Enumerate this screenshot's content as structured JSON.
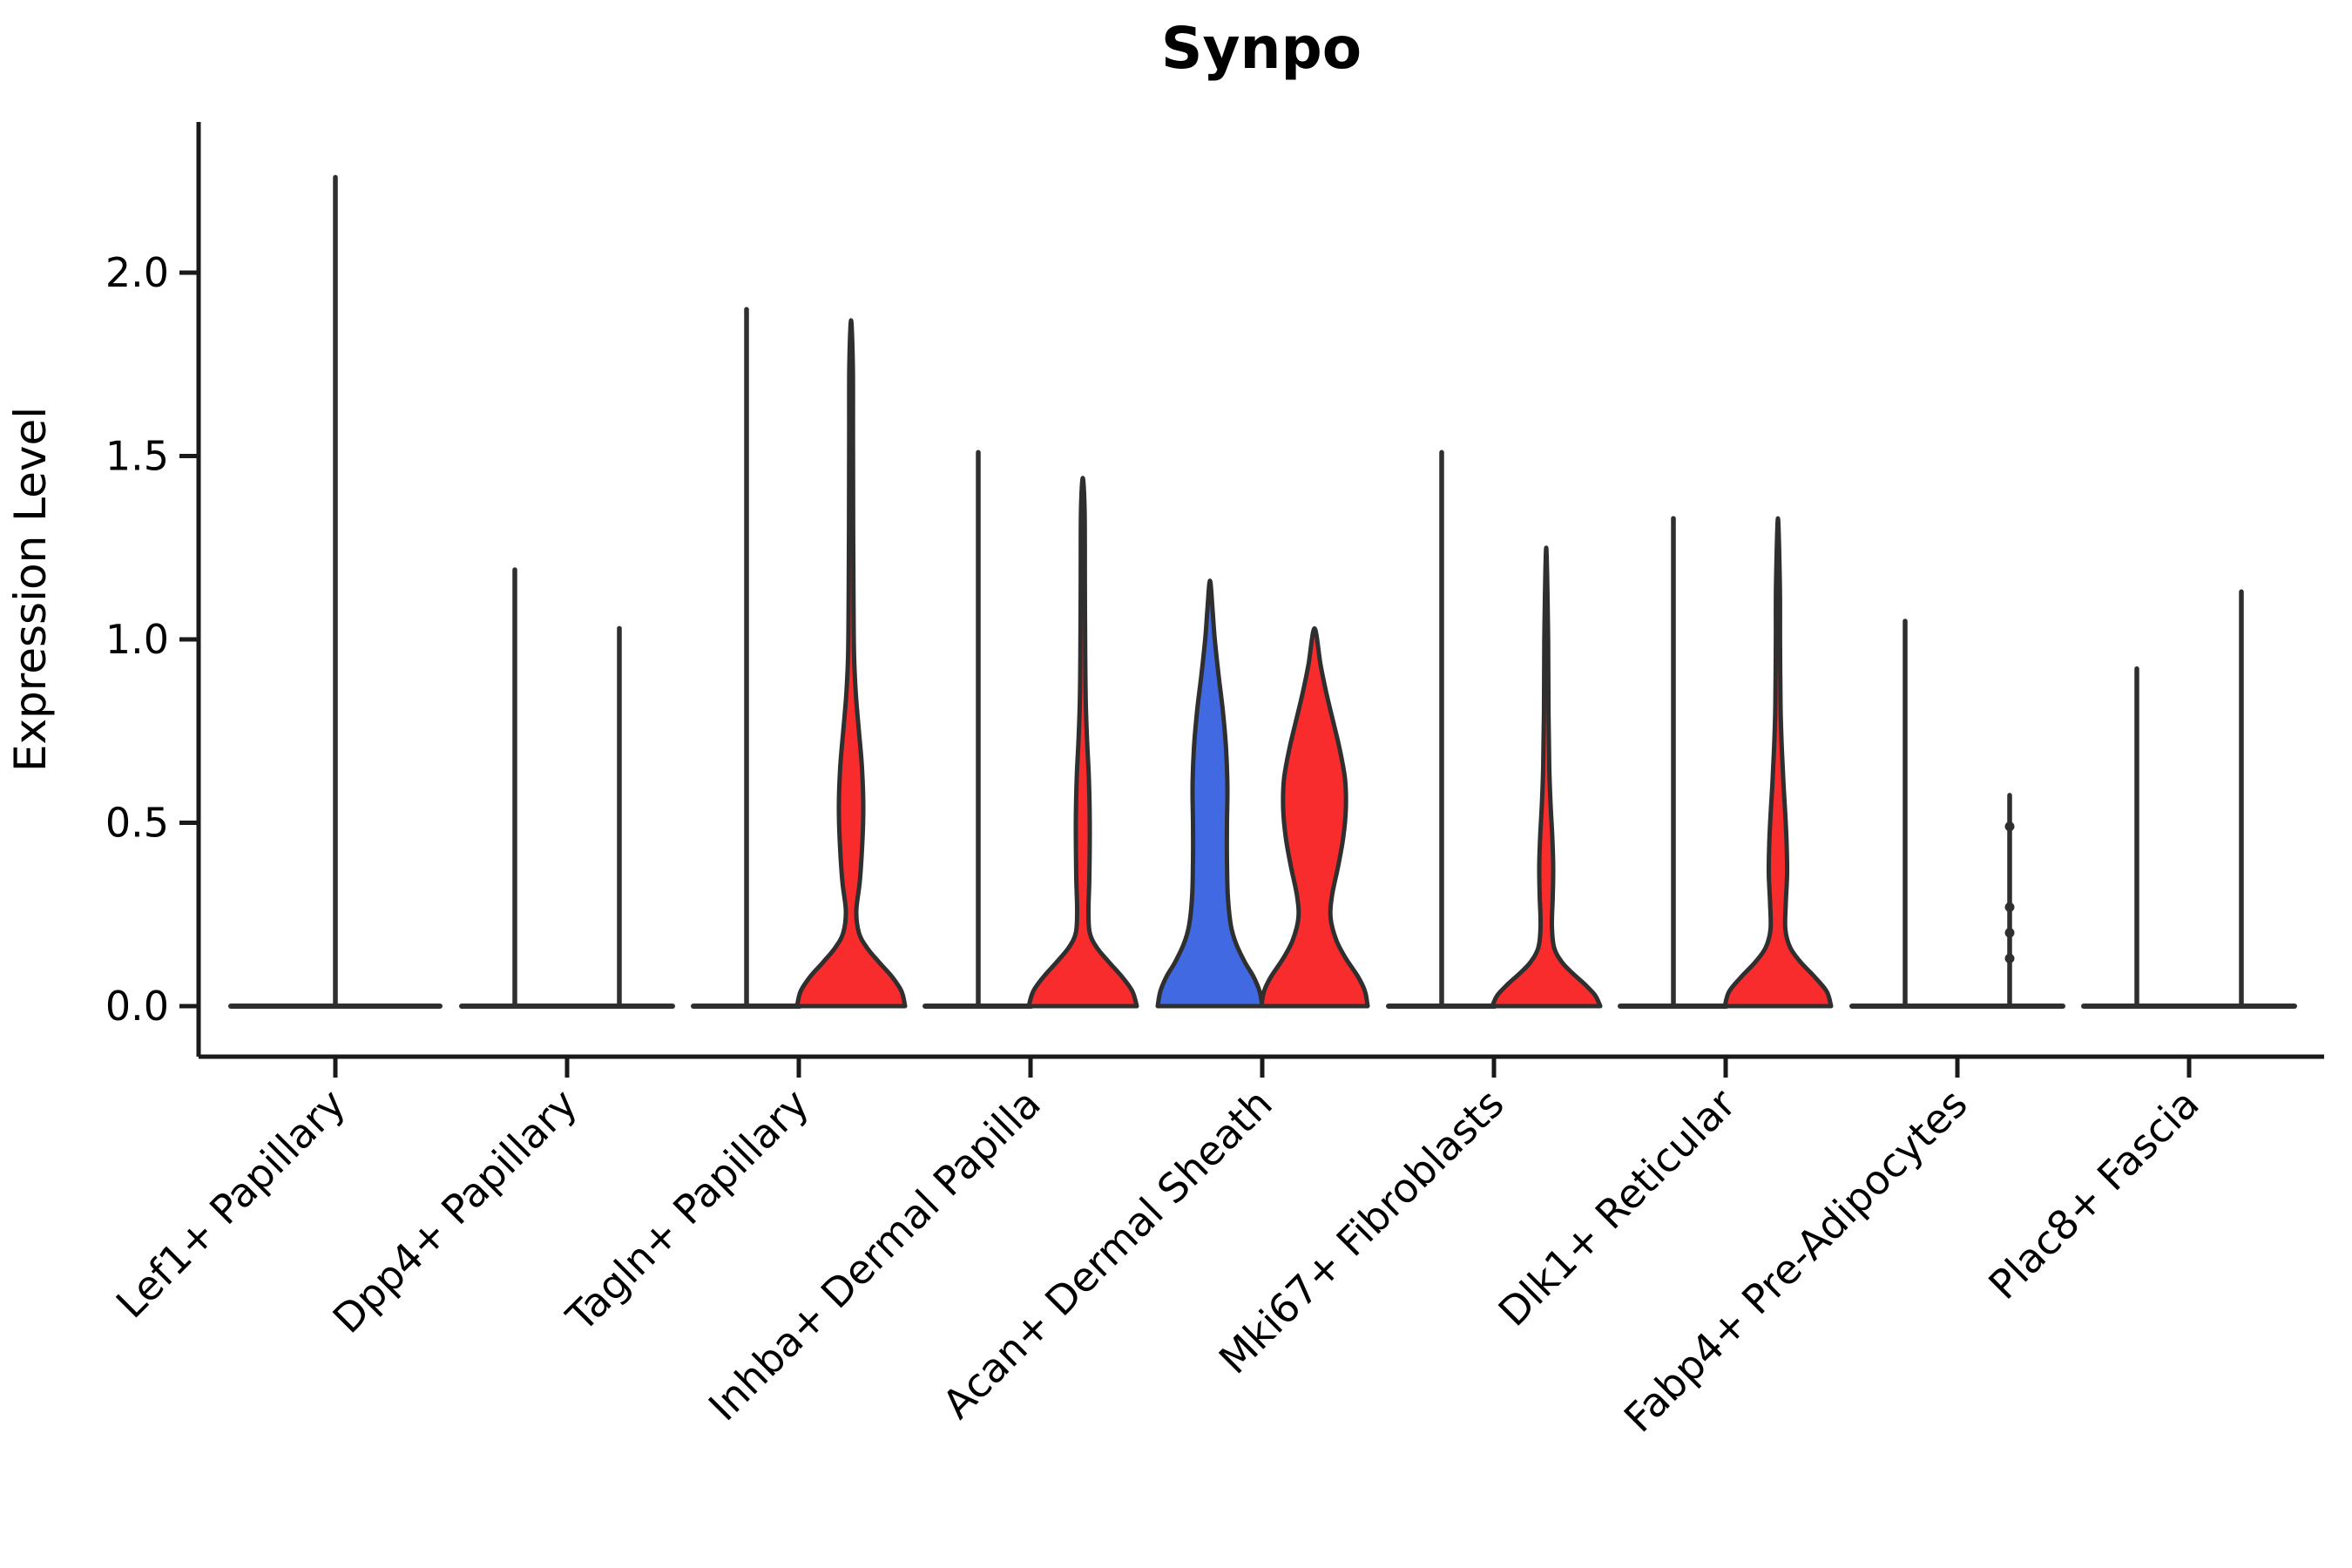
{
  "title": "Synpo",
  "y_axis": {
    "label": "Expression Level",
    "tick_labels": [
      "0.0",
      "0.5",
      "1.0",
      "1.5",
      "2.0"
    ],
    "tick_values": [
      0.0,
      0.5,
      1.0,
      1.5,
      2.0
    ],
    "range": [
      0.0,
      2.41
    ]
  },
  "colors": {
    "red": "#F82C2C",
    "blue": "#4169E1",
    "outline": "#2F2F2F",
    "axis": "#1a1a1a",
    "background": "#ffffff"
  },
  "chart_data": {
    "type": "violin",
    "title": "Synpo",
    "ylabel": "Expression Level",
    "ylim": [
      0.0,
      2.41
    ],
    "grid": false,
    "legend": "none",
    "categories": [
      "Lef1+ Papillary",
      "Dpp4+ Papillary",
      "Tagln+ Papillary",
      "Inhba+ Dermal Papilla",
      "Acan+ Dermal Sheath",
      "Mki67+ Fibroblasts",
      "Dlk1+ Reticular",
      "Fabp4+ Pre-Adipocytes",
      "Plac8+ Fascia"
    ],
    "violins": [
      {
        "category_index": 0,
        "category": "Lef1+ Papillary",
        "side": "center",
        "full_width": true,
        "shape": "spike",
        "max": 2.26,
        "fill": "none"
      },
      {
        "category_index": 1,
        "category": "Dpp4+ Papillary",
        "side": "left",
        "shape": "spike",
        "max": 1.19,
        "fill": "none"
      },
      {
        "category_index": 1,
        "category": "Dpp4+ Papillary",
        "side": "right",
        "shape": "spike",
        "max": 1.03,
        "fill": "none"
      },
      {
        "category_index": 2,
        "category": "Tagln+ Papillary",
        "side": "left",
        "shape": "spike",
        "max": 1.9,
        "fill": "none"
      },
      {
        "category_index": 2,
        "category": "Tagln+ Papillary",
        "side": "right",
        "shape": "body",
        "max": 1.87,
        "fill": "red",
        "width_profile": [
          [
            0,
            62
          ],
          [
            0.04,
            58
          ],
          [
            0.08,
            47
          ],
          [
            0.12,
            32
          ],
          [
            0.16,
            18
          ],
          [
            0.2,
            9
          ],
          [
            0.26,
            6
          ],
          [
            0.34,
            10
          ],
          [
            0.45,
            13
          ],
          [
            0.55,
            14
          ],
          [
            0.65,
            12.5
          ],
          [
            0.75,
            9
          ],
          [
            0.85,
            5.5
          ],
          [
            0.95,
            3.5
          ],
          [
            1.1,
            2.8
          ],
          [
            1.3,
            2.4
          ],
          [
            1.55,
            2.2
          ],
          [
            1.75,
            2.0
          ],
          [
            1.87,
            0
          ]
        ]
      },
      {
        "category_index": 3,
        "category": "Inhba+ Dermal Papilla",
        "side": "left",
        "shape": "spike",
        "max": 1.51,
        "fill": "none"
      },
      {
        "category_index": 3,
        "category": "Inhba+ Dermal Papilla",
        "side": "right",
        "shape": "body",
        "max": 1.44,
        "fill": "red",
        "width_profile": [
          [
            0,
            62
          ],
          [
            0.04,
            57
          ],
          [
            0.08,
            45
          ],
          [
            0.12,
            30
          ],
          [
            0.16,
            16
          ],
          [
            0.2,
            8
          ],
          [
            0.26,
            6.5
          ],
          [
            0.35,
            7.5
          ],
          [
            0.5,
            8
          ],
          [
            0.62,
            7
          ],
          [
            0.72,
            5
          ],
          [
            0.82,
            3.5
          ],
          [
            0.95,
            2.8
          ],
          [
            1.15,
            2.4
          ],
          [
            1.35,
            2.1
          ],
          [
            1.44,
            0
          ]
        ]
      },
      {
        "category_index": 4,
        "category": "Acan+ Dermal Sheath",
        "side": "left",
        "shape": "body",
        "max": 1.16,
        "fill": "blue",
        "width_profile": [
          [
            0,
            60
          ],
          [
            0.04,
            57
          ],
          [
            0.08,
            50
          ],
          [
            0.12,
            40
          ],
          [
            0.17,
            30
          ],
          [
            0.22,
            24
          ],
          [
            0.3,
            20.5
          ],
          [
            0.4,
            19.5
          ],
          [
            0.5,
            19.5
          ],
          [
            0.6,
            20
          ],
          [
            0.7,
            18.5
          ],
          [
            0.8,
            15
          ],
          [
            0.9,
            10
          ],
          [
            1.0,
            5.5
          ],
          [
            1.08,
            3
          ],
          [
            1.16,
            0
          ]
        ]
      },
      {
        "category_index": 4,
        "category": "Acan+ Dermal Sheath",
        "side": "right",
        "shape": "body",
        "max": 1.03,
        "fill": "red",
        "width_profile": [
          [
            0,
            61
          ],
          [
            0.04,
            58
          ],
          [
            0.08,
            50
          ],
          [
            0.13,
            36
          ],
          [
            0.18,
            25
          ],
          [
            0.24,
            18.5
          ],
          [
            0.3,
            20
          ],
          [
            0.38,
            27
          ],
          [
            0.46,
            33
          ],
          [
            0.54,
            36
          ],
          [
            0.62,
            35
          ],
          [
            0.7,
            29
          ],
          [
            0.78,
            21
          ],
          [
            0.86,
            13
          ],
          [
            0.93,
            7
          ],
          [
            1.03,
            0
          ]
        ]
      },
      {
        "category_index": 5,
        "category": "Mki67+ Fibroblasts",
        "side": "left",
        "shape": "spike",
        "max": 1.51,
        "fill": "none"
      },
      {
        "category_index": 5,
        "category": "Mki67+ Fibroblasts",
        "side": "right",
        "shape": "body",
        "max": 1.25,
        "fill": "red",
        "width_profile": [
          [
            0,
            62
          ],
          [
            0.03,
            56
          ],
          [
            0.06,
            44
          ],
          [
            0.09,
            30
          ],
          [
            0.12,
            18
          ],
          [
            0.16,
            9
          ],
          [
            0.22,
            6.5
          ],
          [
            0.3,
            7.5
          ],
          [
            0.38,
            8
          ],
          [
            0.46,
            7
          ],
          [
            0.55,
            5
          ],
          [
            0.65,
            3.5
          ],
          [
            0.8,
            2.6
          ],
          [
            1.0,
            2.2
          ],
          [
            1.25,
            0
          ]
        ]
      },
      {
        "category_index": 6,
        "category": "Dlk1+ Reticular",
        "side": "left",
        "shape": "spike",
        "max": 1.33,
        "fill": "none"
      },
      {
        "category_index": 6,
        "category": "Dlk1+ Reticular",
        "side": "right",
        "shape": "body",
        "max": 1.33,
        "fill": "red",
        "width_profile": [
          [
            0,
            61
          ],
          [
            0.04,
            56
          ],
          [
            0.08,
            42
          ],
          [
            0.12,
            26
          ],
          [
            0.16,
            14
          ],
          [
            0.21,
            8.5
          ],
          [
            0.28,
            9
          ],
          [
            0.36,
            10.5
          ],
          [
            0.44,
            10
          ],
          [
            0.52,
            8.5
          ],
          [
            0.6,
            6.5
          ],
          [
            0.7,
            4.5
          ],
          [
            0.82,
            3
          ],
          [
            1.0,
            2.4
          ],
          [
            1.15,
            2.2
          ],
          [
            1.33,
            0
          ]
        ]
      },
      {
        "category_index": 7,
        "category": "Fabp4+ Pre-Adipocytes",
        "side": "left",
        "shape": "spike",
        "max": 1.05,
        "fill": "none"
      },
      {
        "category_index": 7,
        "category": "Fabp4+ Pre-Adipocytes",
        "side": "right",
        "shape": "spike",
        "max": 0.575,
        "fill": "none",
        "dots": [
          0.49,
          0.27,
          0.2,
          0.13
        ]
      },
      {
        "category_index": 8,
        "category": "Plac8+ Fascia",
        "side": "left",
        "shape": "spike",
        "max": 0.92,
        "fill": "none"
      },
      {
        "category_index": 8,
        "category": "Plac8+ Fascia",
        "side": "right",
        "shape": "spike",
        "max": 1.13,
        "fill": "none"
      }
    ]
  }
}
